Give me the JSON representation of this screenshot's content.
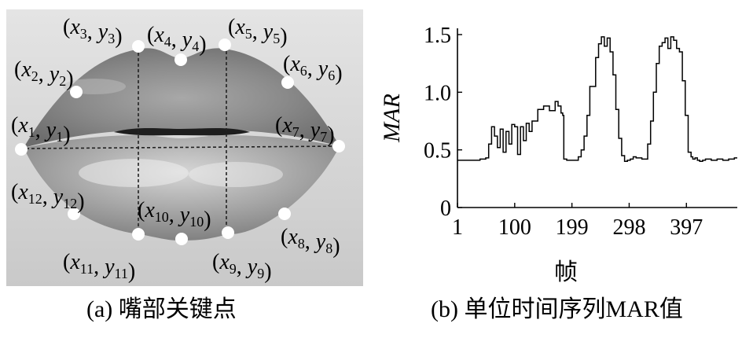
{
  "panel_a": {
    "caption": "(a) 嘴部关键点",
    "keypoints": [
      {
        "label_x": "x",
        "label_y": "y",
        "index": "1"
      },
      {
        "label_x": "x",
        "label_y": "y",
        "index": "2"
      },
      {
        "label_x": "x",
        "label_y": "y",
        "index": "3"
      },
      {
        "label_x": "x",
        "label_y": "y",
        "index": "4"
      },
      {
        "label_x": "x",
        "label_y": "y",
        "index": "5"
      },
      {
        "label_x": "x",
        "label_y": "y",
        "index": "6"
      },
      {
        "label_x": "x",
        "label_y": "y",
        "index": "7"
      },
      {
        "label_x": "x",
        "label_y": "y",
        "index": "8"
      },
      {
        "label_x": "x",
        "label_y": "y",
        "index": "9"
      },
      {
        "label_x": "x",
        "label_y": "y",
        "index": "10"
      },
      {
        "label_x": "x",
        "label_y": "y",
        "index": "11"
      },
      {
        "label_x": "x",
        "label_y": "y",
        "index": "12"
      }
    ],
    "point_color": "#ffffff",
    "guide_line_color": "#222222"
  },
  "panel_b": {
    "caption": "(b) 单位时间序列MAR值"
  },
  "chart_data": {
    "type": "line",
    "title": "",
    "xlabel": "帧",
    "ylabel": "MAR",
    "x_ticks": [
      1,
      100,
      199,
      298,
      397
    ],
    "x_tick_labels": [
      "1",
      "100",
      "199",
      "298",
      "397"
    ],
    "y_ticks": [
      0,
      0.5,
      1.0,
      1.5
    ],
    "y_tick_labels": [
      "0",
      "0.5",
      "1.0",
      "1.5"
    ],
    "xlim": [
      1,
      485
    ],
    "ylim": [
      0,
      1.5
    ],
    "grid": false,
    "series": [
      {
        "x": [
          1,
          20,
          40,
          50,
          55,
          60,
          65,
          70,
          75,
          80,
          85,
          90,
          95,
          100,
          105,
          110,
          115,
          120,
          125,
          130,
          140,
          150,
          160,
          170,
          175,
          180,
          183,
          185,
          190,
          200,
          210,
          215,
          220,
          225,
          230,
          240,
          245,
          250,
          255,
          260,
          265,
          270,
          275,
          280,
          285,
          290,
          295,
          300,
          305,
          310,
          320,
          330,
          335,
          340,
          345,
          350,
          355,
          360,
          365,
          370,
          375,
          380,
          385,
          390,
          395,
          400,
          405,
          408,
          412,
          416,
          420,
          425,
          430,
          440,
          450,
          460,
          470,
          480,
          485
        ],
        "y": [
          0.41,
          0.41,
          0.42,
          0.43,
          0.55,
          0.7,
          0.62,
          0.52,
          0.68,
          0.48,
          0.66,
          0.55,
          0.72,
          0.7,
          0.46,
          0.7,
          0.58,
          0.73,
          0.66,
          0.75,
          0.85,
          0.88,
          0.84,
          0.92,
          0.88,
          0.82,
          0.8,
          0.42,
          0.41,
          0.41,
          0.44,
          0.5,
          0.62,
          0.8,
          1.05,
          1.3,
          1.42,
          1.48,
          1.4,
          1.47,
          1.35,
          1.15,
          0.85,
          0.6,
          0.45,
          0.4,
          0.41,
          0.42,
          0.44,
          0.43,
          0.42,
          0.55,
          0.75,
          1.0,
          1.25,
          1.4,
          1.43,
          1.47,
          1.38,
          1.48,
          1.45,
          1.38,
          1.35,
          1.1,
          0.8,
          0.48,
          0.44,
          0.42,
          0.43,
          0.41,
          0.4,
          0.41,
          0.42,
          0.41,
          0.42,
          0.41,
          0.42,
          0.43,
          0.43
        ]
      }
    ]
  }
}
